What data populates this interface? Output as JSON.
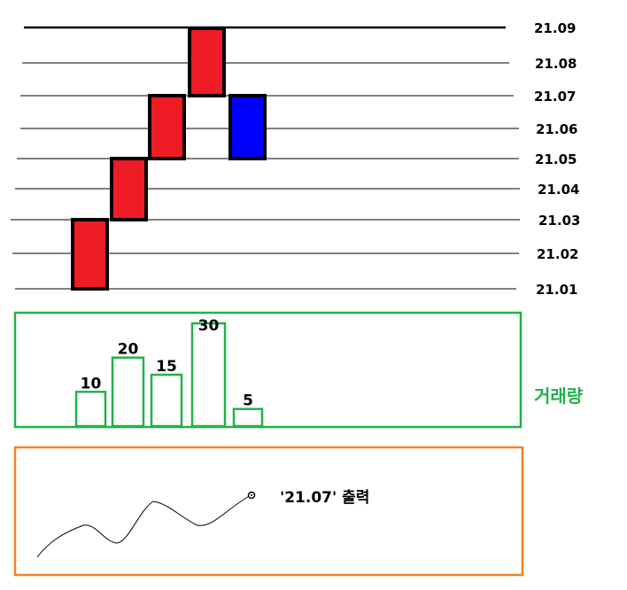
{
  "price_axis": {
    "levels": [
      "21.01",
      "21.02",
      "21.03",
      "21.04",
      "21.05",
      "21.06",
      "21.07",
      "21.08",
      "21.09"
    ]
  },
  "candles": [
    {
      "open": 21.01,
      "close": 21.03,
      "direction": "up"
    },
    {
      "open": 21.03,
      "close": 21.05,
      "direction": "up"
    },
    {
      "open": 21.05,
      "close": 21.07,
      "direction": "up"
    },
    {
      "open": 21.07,
      "close": 21.09,
      "direction": "up"
    },
    {
      "open": 21.07,
      "close": 21.05,
      "direction": "down"
    }
  ],
  "volume_panel": {
    "label": "거래량",
    "bars": [
      {
        "value": 10,
        "label": "10"
      },
      {
        "value": 20,
        "label": "20"
      },
      {
        "value": 15,
        "label": "15"
      },
      {
        "value": 30,
        "label": "30"
      },
      {
        "value": 5,
        "label": "5"
      }
    ]
  },
  "output_panel": {
    "note": "'21.07' 출력"
  },
  "colors": {
    "up": "#ee1c25",
    "down": "#0000ff",
    "candle_border": "#000000",
    "volume": "#22b14c",
    "output_border": "#f0832a",
    "grid": "#000000"
  }
}
